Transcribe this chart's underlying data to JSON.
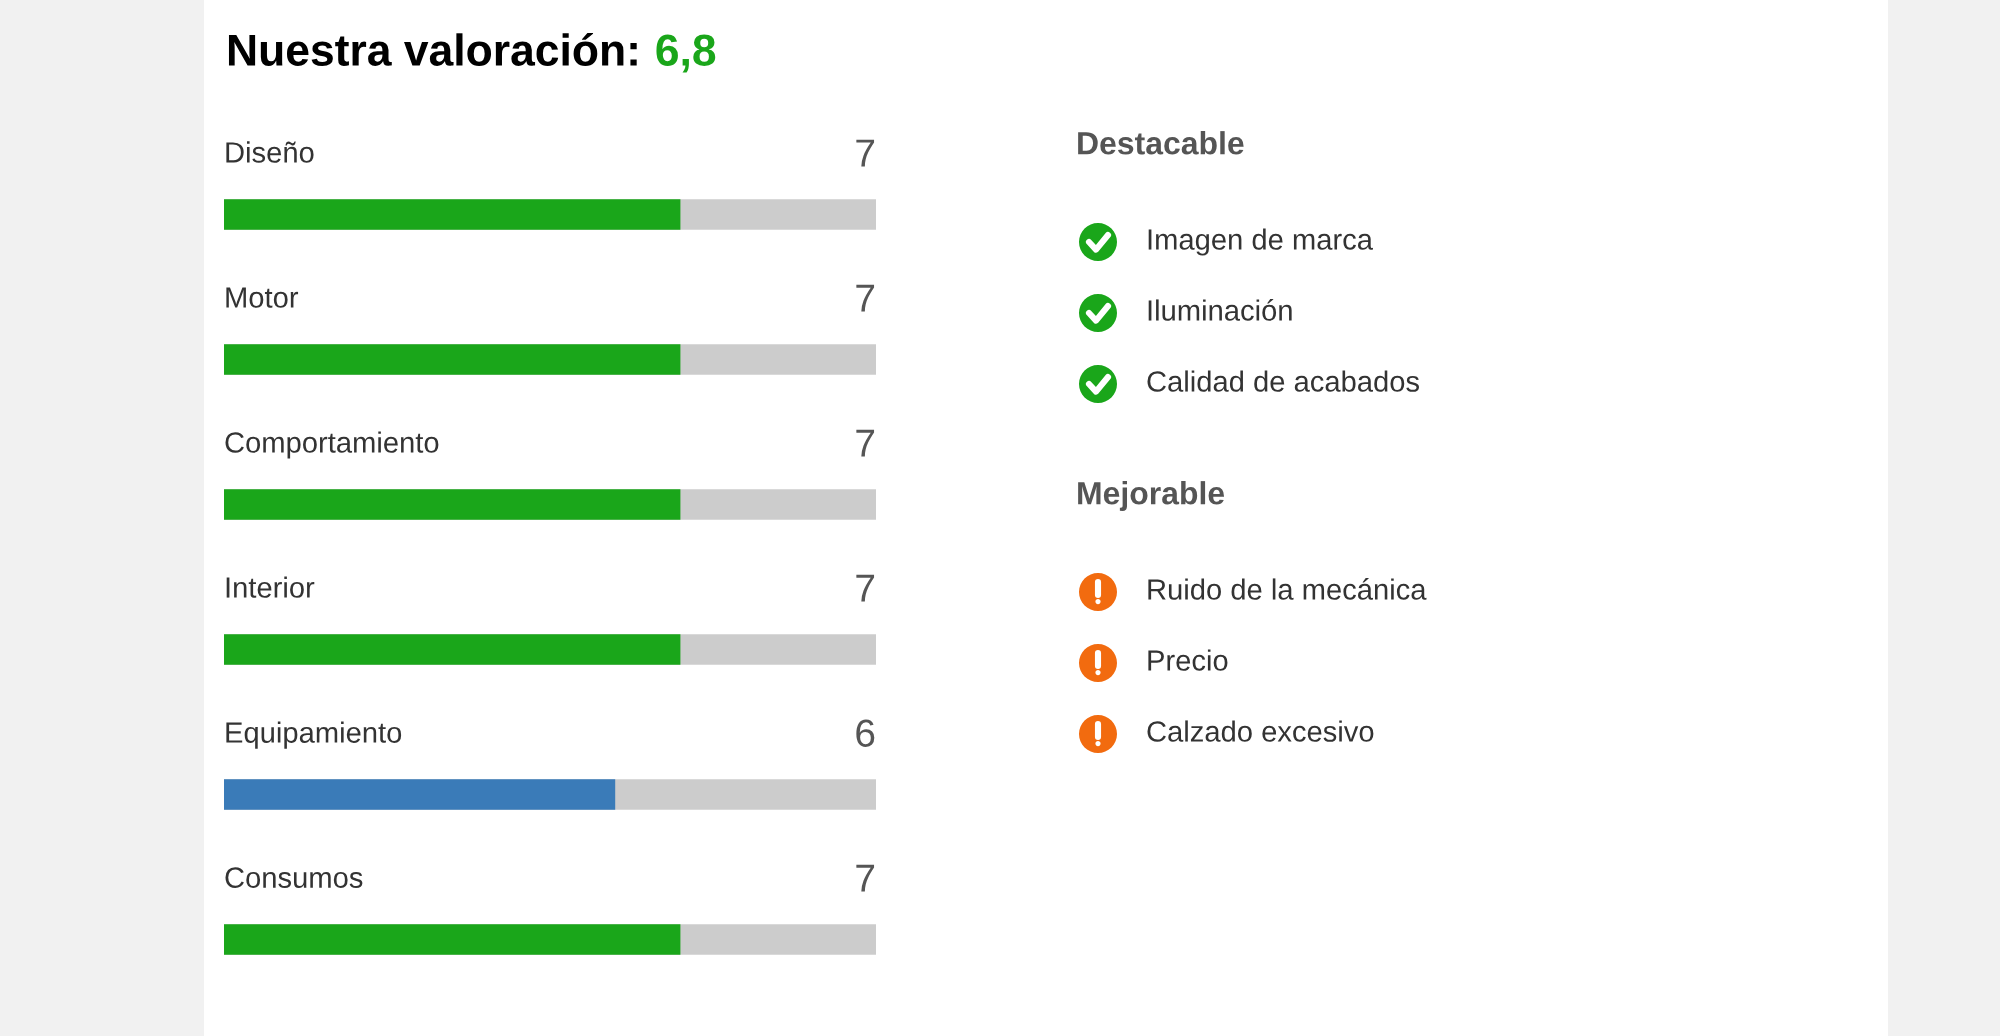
{
  "chart_data": [
    {
      "type": "bar",
      "orientation": "horizontal",
      "title": "Nuestra valoración:",
      "annotations": [
        "6,8"
      ],
      "color": "#1aa61a",
      "categories": [
        "Diseño",
        "Motor",
        "Comportamiento",
        "Interior",
        "Equipamiento",
        "Consumos"
      ],
      "values": [
        7,
        7,
        7,
        7,
        6,
        7
      ],
      "colors": [
        "#1aa61a",
        "#1aa61a",
        "#1aa61a",
        "#1aa61a",
        "#3a7bb8",
        "#1aa61a"
      ],
      "xlim": [
        0,
        10
      ],
      "data_labels": true,
      "legend": false
    },
    {
      "type": "other",
      "title": "Destacable",
      "color": "#1aa61a",
      "annotations": [
        "Imagen de marca",
        "Iluminación",
        "Calidad de acabados"
      ]
    },
    {
      "type": "other",
      "title": "Mejorable",
      "color": "#f26b0f",
      "annotations": [
        "Ruido de la mecánica",
        "Precio",
        "Calzado excesivo"
      ]
    }
  ]
}
